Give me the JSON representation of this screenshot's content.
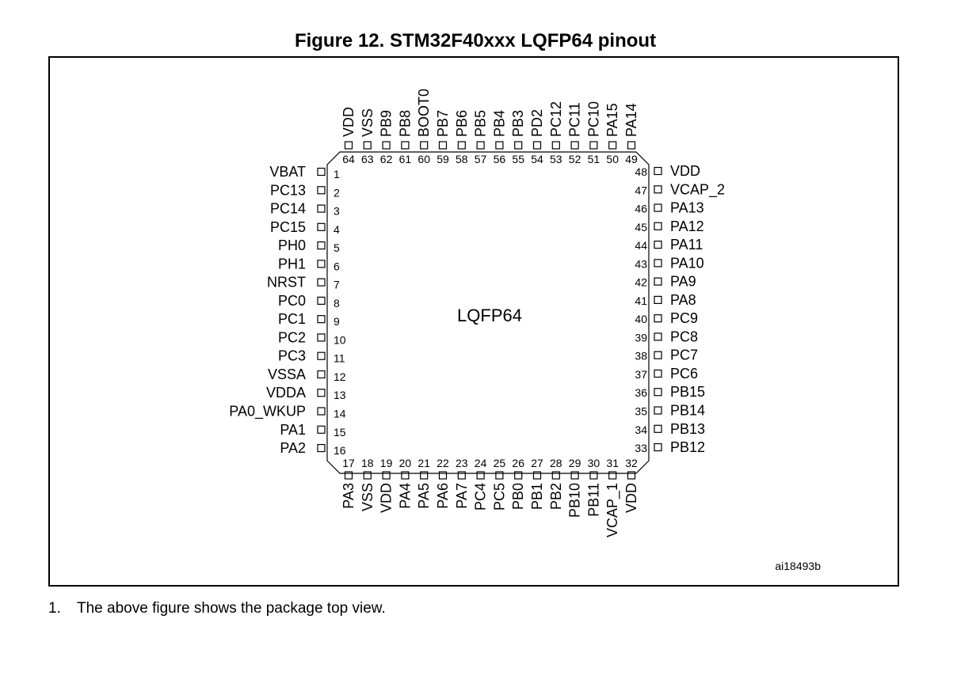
{
  "figure": {
    "title": "Figure 12. STM32F40xxx LQFP64 pinout",
    "package_label": "LQFP64",
    "ref_code": "ai18493b"
  },
  "pins": {
    "left": [
      {
        "n": 1,
        "name": "VBAT"
      },
      {
        "n": 2,
        "name": "PC13"
      },
      {
        "n": 3,
        "name": "PC14"
      },
      {
        "n": 4,
        "name": "PC15"
      },
      {
        "n": 5,
        "name": "PH0"
      },
      {
        "n": 6,
        "name": "PH1"
      },
      {
        "n": 7,
        "name": "NRST"
      },
      {
        "n": 8,
        "name": "PC0"
      },
      {
        "n": 9,
        "name": "PC1"
      },
      {
        "n": 10,
        "name": "PC2"
      },
      {
        "n": 11,
        "name": "PC3"
      },
      {
        "n": 12,
        "name": "VSSA"
      },
      {
        "n": 13,
        "name": "VDDA"
      },
      {
        "n": 14,
        "name": "PA0_WKUP"
      },
      {
        "n": 15,
        "name": "PA1"
      },
      {
        "n": 16,
        "name": "PA2"
      }
    ],
    "bottom": [
      {
        "n": 17,
        "name": "PA3"
      },
      {
        "n": 18,
        "name": "VSS"
      },
      {
        "n": 19,
        "name": "VDD"
      },
      {
        "n": 20,
        "name": "PA4"
      },
      {
        "n": 21,
        "name": "PA5"
      },
      {
        "n": 22,
        "name": "PA6"
      },
      {
        "n": 23,
        "name": "PA7"
      },
      {
        "n": 24,
        "name": "PC4"
      },
      {
        "n": 25,
        "name": "PC5"
      },
      {
        "n": 26,
        "name": "PB0"
      },
      {
        "n": 27,
        "name": "PB1"
      },
      {
        "n": 28,
        "name": "PB2"
      },
      {
        "n": 29,
        "name": "PB10"
      },
      {
        "n": 30,
        "name": "PB11"
      },
      {
        "n": 31,
        "name": "VCAP_1"
      },
      {
        "n": 32,
        "name": "VDD"
      }
    ],
    "right": [
      {
        "n": 48,
        "name": "VDD"
      },
      {
        "n": 47,
        "name": "VCAP_2"
      },
      {
        "n": 46,
        "name": "PA13"
      },
      {
        "n": 45,
        "name": "PA12"
      },
      {
        "n": 44,
        "name": "PA11"
      },
      {
        "n": 43,
        "name": "PA10"
      },
      {
        "n": 42,
        "name": "PA9"
      },
      {
        "n": 41,
        "name": "PA8"
      },
      {
        "n": 40,
        "name": "PC9"
      },
      {
        "n": 39,
        "name": "PC8"
      },
      {
        "n": 38,
        "name": "PC7"
      },
      {
        "n": 37,
        "name": "PC6"
      },
      {
        "n": 36,
        "name": "PB15"
      },
      {
        "n": 35,
        "name": "PB14"
      },
      {
        "n": 34,
        "name": "PB13"
      },
      {
        "n": 33,
        "name": "PB12"
      }
    ],
    "top": [
      {
        "n": 64,
        "name": "VDD"
      },
      {
        "n": 63,
        "name": "VSS"
      },
      {
        "n": 62,
        "name": "PB9"
      },
      {
        "n": 61,
        "name": "PB8"
      },
      {
        "n": 60,
        "name": "BOOT0"
      },
      {
        "n": 59,
        "name": "PB7"
      },
      {
        "n": 58,
        "name": "PB6"
      },
      {
        "n": 57,
        "name": "PB5"
      },
      {
        "n": 56,
        "name": "PB4"
      },
      {
        "n": 55,
        "name": "PB3"
      },
      {
        "n": 54,
        "name": "PD2"
      },
      {
        "n": 53,
        "name": "PC12"
      },
      {
        "n": 52,
        "name": "PC11"
      },
      {
        "n": 51,
        "name": "PC10"
      },
      {
        "n": 50,
        "name": "PA15"
      },
      {
        "n": 49,
        "name": "PA14"
      }
    ]
  },
  "footnote": {
    "number": "1.",
    "text": "The above figure shows the package top view."
  }
}
